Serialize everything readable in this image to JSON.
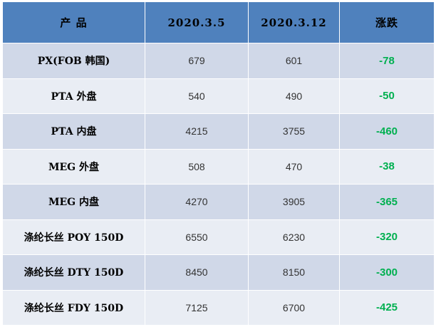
{
  "table": {
    "headers": {
      "product": "产 品",
      "date1": "2020.3.5",
      "date2": "2020.3.12",
      "change": "涨跌"
    },
    "rows": [
      {
        "product": "PX(FOB 韩国)",
        "date1": "679",
        "date2": "601",
        "change": "-78"
      },
      {
        "product": "PTA 外盘",
        "date1": "540",
        "date2": "490",
        "change": "-50"
      },
      {
        "product": "PTA 内盘",
        "date1": "4215",
        "date2": "3755",
        "change": "-460"
      },
      {
        "product": "MEG 外盘",
        "date1": "508",
        "date2": "470",
        "change": "-38"
      },
      {
        "product": "MEG 内盘",
        "date1": "4270",
        "date2": "3905",
        "change": "-365"
      },
      {
        "product": "涤纶长丝 POY 150D",
        "date1": "6550",
        "date2": "6230",
        "change": "-320"
      },
      {
        "product": "涤纶长丝 DTY 150D",
        "date1": "8450",
        "date2": "8150",
        "change": "-300"
      },
      {
        "product": "涤纶长丝 FDY 150D",
        "date1": "7125",
        "date2": "6700",
        "change": "-425"
      }
    ]
  },
  "colors": {
    "header_bg": "#4f81bd",
    "row_odd_bg": "#d0d8e8",
    "row_even_bg": "#e9edf4",
    "change_text": "#00b050"
  }
}
